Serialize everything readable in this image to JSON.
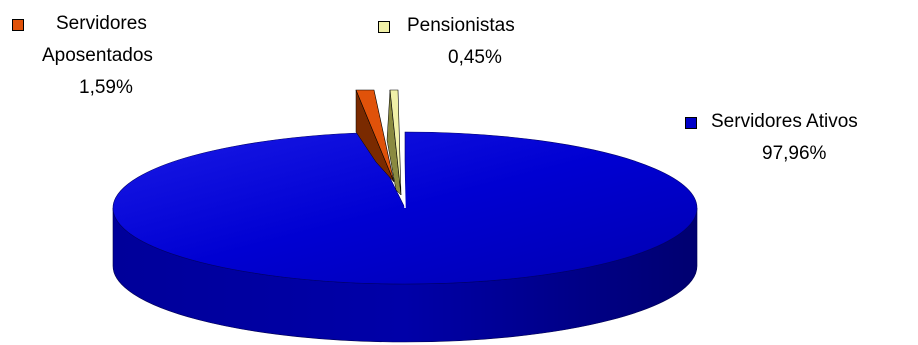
{
  "chart_data": {
    "type": "pie",
    "style": "3d-exploded",
    "slices": [
      {
        "name": "Servidores Ativos",
        "value": 97.96,
        "label": "97,96%",
        "color": "#0000c8"
      },
      {
        "name": "Servidores Aposentados",
        "value": 1.59,
        "label": "1,59%",
        "color": "#e0520a"
      },
      {
        "name": "Pensionistas",
        "value": 0.45,
        "label": "0,45%",
        "color": "#f0f0a8"
      }
    ],
    "legend": {
      "ativos_line1": "Servidores Ativos",
      "ativos_value": "97,96%",
      "aposentados_line1": "Servidores",
      "aposentados_line2": "Aposentados",
      "aposentados_value": "1,59%",
      "pensionistas_line1": "Pensionistas",
      "pensionistas_value": "0,45%"
    }
  }
}
